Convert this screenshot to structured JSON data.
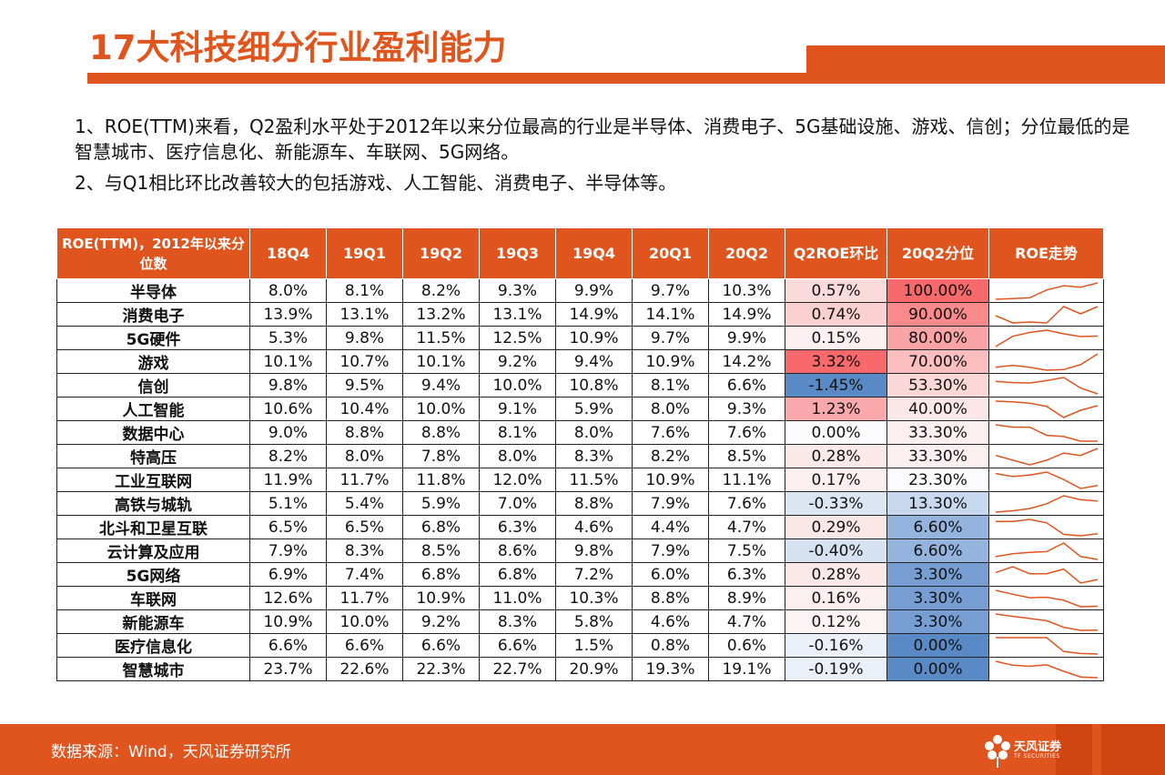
{
  "header": {
    "title": "17大科技细分行业盈利能力"
  },
  "intro": {
    "p1": "1、ROE(TTM)来看，Q2盈利水平处于2012年以来分位最高的行业是半导体、消费电子、5G基础设施、游戏、信创；分位最低的是智慧城市、医疗信息化、新能源车、车联网、5G网络。",
    "p2": "2、与Q1相比环比改善较大的包括游戏、人工智能、消费电子、半导体等。"
  },
  "table": {
    "corner": "ROE(TTM)，2012年以来分位数",
    "headers": [
      "18Q4",
      "19Q1",
      "19Q2",
      "19Q3",
      "19Q4",
      "20Q1",
      "20Q2",
      "Q2ROE环比",
      "20Q2分位",
      "ROE走势"
    ],
    "rows": [
      {
        "name": "半导体",
        "vals": [
          "8.0%",
          "8.1%",
          "8.2%",
          "9.3%",
          "9.9%",
          "9.7%",
          "10.3%"
        ],
        "chg": "0.57%",
        "chg_bg": "#FBDADB",
        "pct": "100.00%",
        "pct_bg": "#F8696B"
      },
      {
        "name": "消费电子",
        "vals": [
          "13.9%",
          "13.1%",
          "13.2%",
          "13.1%",
          "14.9%",
          "14.1%",
          "14.9%"
        ],
        "chg": "0.74%",
        "chg_bg": "#FAD0D1",
        "pct": "90.00%",
        "pct_bg": "#F9898B"
      },
      {
        "name": "5G硬件",
        "vals": [
          "5.3%",
          "9.8%",
          "11.5%",
          "12.5%",
          "10.9%",
          "9.7%",
          "9.9%"
        ],
        "chg": "0.15%",
        "chg_bg": "#FCF0F1",
        "pct": "80.00%",
        "pct_bg": "#FAA4A6"
      },
      {
        "name": "游戏",
        "vals": [
          "10.1%",
          "10.7%",
          "10.1%",
          "9.2%",
          "9.4%",
          "10.9%",
          "14.2%"
        ],
        "chg": "3.32%",
        "chg_bg": "#F8696B",
        "pct": "70.00%",
        "pct_bg": "#FBBDBE"
      },
      {
        "name": "信创",
        "vals": [
          "9.8%",
          "9.5%",
          "9.4%",
          "10.0%",
          "10.8%",
          "8.1%",
          "6.6%"
        ],
        "chg": "-1.45%",
        "chg_bg": "#5A8AC6",
        "pct": "53.30%",
        "pct_bg": "#FCD7D8"
      },
      {
        "name": "人工智能",
        "vals": [
          "10.6%",
          "10.4%",
          "10.0%",
          "9.1%",
          "5.9%",
          "8.0%",
          "9.3%"
        ],
        "chg": "1.23%",
        "chg_bg": "#F9A9AB",
        "pct": "40.00%",
        "pct_bg": "#FCE7E8"
      },
      {
        "name": "数据中心",
        "vals": [
          "9.0%",
          "8.8%",
          "8.8%",
          "8.1%",
          "8.0%",
          "7.6%",
          "7.6%"
        ],
        "chg": "0.00%",
        "chg_bg": "#FCFCFF",
        "pct": "33.30%",
        "pct_bg": "#FCEFF0"
      },
      {
        "name": "特高压",
        "vals": [
          "8.2%",
          "8.0%",
          "7.8%",
          "8.0%",
          "8.3%",
          "8.2%",
          "8.5%"
        ],
        "chg": "0.28%",
        "chg_bg": "#FBE8E9",
        "pct": "33.30%",
        "pct_bg": "#FCEFF0"
      },
      {
        "name": "工业互联网",
        "vals": [
          "11.9%",
          "11.7%",
          "11.8%",
          "12.0%",
          "11.5%",
          "10.9%",
          "11.1%"
        ],
        "chg": "0.17%",
        "chg_bg": "#FCEFF0",
        "pct": "23.30%",
        "pct_bg": "#FCFCFF"
      },
      {
        "name": "高铁与城轨",
        "vals": [
          "5.1%",
          "5.4%",
          "5.9%",
          "7.0%",
          "8.8%",
          "7.9%",
          "7.6%"
        ],
        "chg": "-0.33%",
        "chg_bg": "#DCE6F3",
        "pct": "13.30%",
        "pct_bg": "#C8D8EE"
      },
      {
        "name": "北斗和卫星互联",
        "vals": [
          "6.5%",
          "6.5%",
          "6.8%",
          "6.3%",
          "4.6%",
          "4.4%",
          "4.7%"
        ],
        "chg": "0.29%",
        "chg_bg": "#FBE7E8",
        "pct": "6.60%",
        "pct_bg": "#94B3DD"
      },
      {
        "name": "云计算及应用",
        "vals": [
          "7.9%",
          "8.3%",
          "8.5%",
          "8.6%",
          "9.8%",
          "7.9%",
          "7.5%"
        ],
        "chg": "-0.40%",
        "chg_bg": "#D6E2F1",
        "pct": "6.60%",
        "pct_bg": "#94B3DD"
      },
      {
        "name": "5G网络",
        "vals": [
          "6.9%",
          "7.4%",
          "6.8%",
          "6.8%",
          "7.2%",
          "6.0%",
          "6.3%"
        ],
        "chg": "0.28%",
        "chg_bg": "#FBE8E9",
        "pct": "3.30%",
        "pct_bg": "#769ED2"
      },
      {
        "name": "车联网",
        "vals": [
          "12.6%",
          "11.7%",
          "10.9%",
          "11.0%",
          "10.3%",
          "8.8%",
          "8.9%"
        ],
        "chg": "0.16%",
        "chg_bg": "#FCEFF0",
        "pct": "3.30%",
        "pct_bg": "#769ED2"
      },
      {
        "name": "新能源车",
        "vals": [
          "10.9%",
          "10.0%",
          "9.2%",
          "8.3%",
          "5.8%",
          "4.6%",
          "4.7%"
        ],
        "chg": "0.12%",
        "chg_bg": "#FCF3F4",
        "pct": "3.30%",
        "pct_bg": "#769ED2"
      },
      {
        "name": "医疗信息化",
        "vals": [
          "6.6%",
          "6.6%",
          "6.6%",
          "6.6%",
          "1.5%",
          "0.8%",
          "0.6%"
        ],
        "chg": "-0.16%",
        "chg_bg": "#ECF0F8",
        "pct": "0.00%",
        "pct_bg": "#5A8AC6"
      },
      {
        "name": "智慧城市",
        "vals": [
          "23.7%",
          "22.6%",
          "22.3%",
          "22.7%",
          "20.9%",
          "19.3%",
          "19.1%"
        ],
        "chg": "-0.19%",
        "chg_bg": "#EAEFF8",
        "pct": "0.00%",
        "pct_bg": "#5A8AC6"
      }
    ],
    "spark_color": "#E0541E"
  },
  "footer": {
    "source": "数据来源：Wind，天风证券研究所",
    "logo_cn": "天风证券",
    "logo_en": "TF SECURITIES",
    "logo_color": "#ffffff"
  }
}
